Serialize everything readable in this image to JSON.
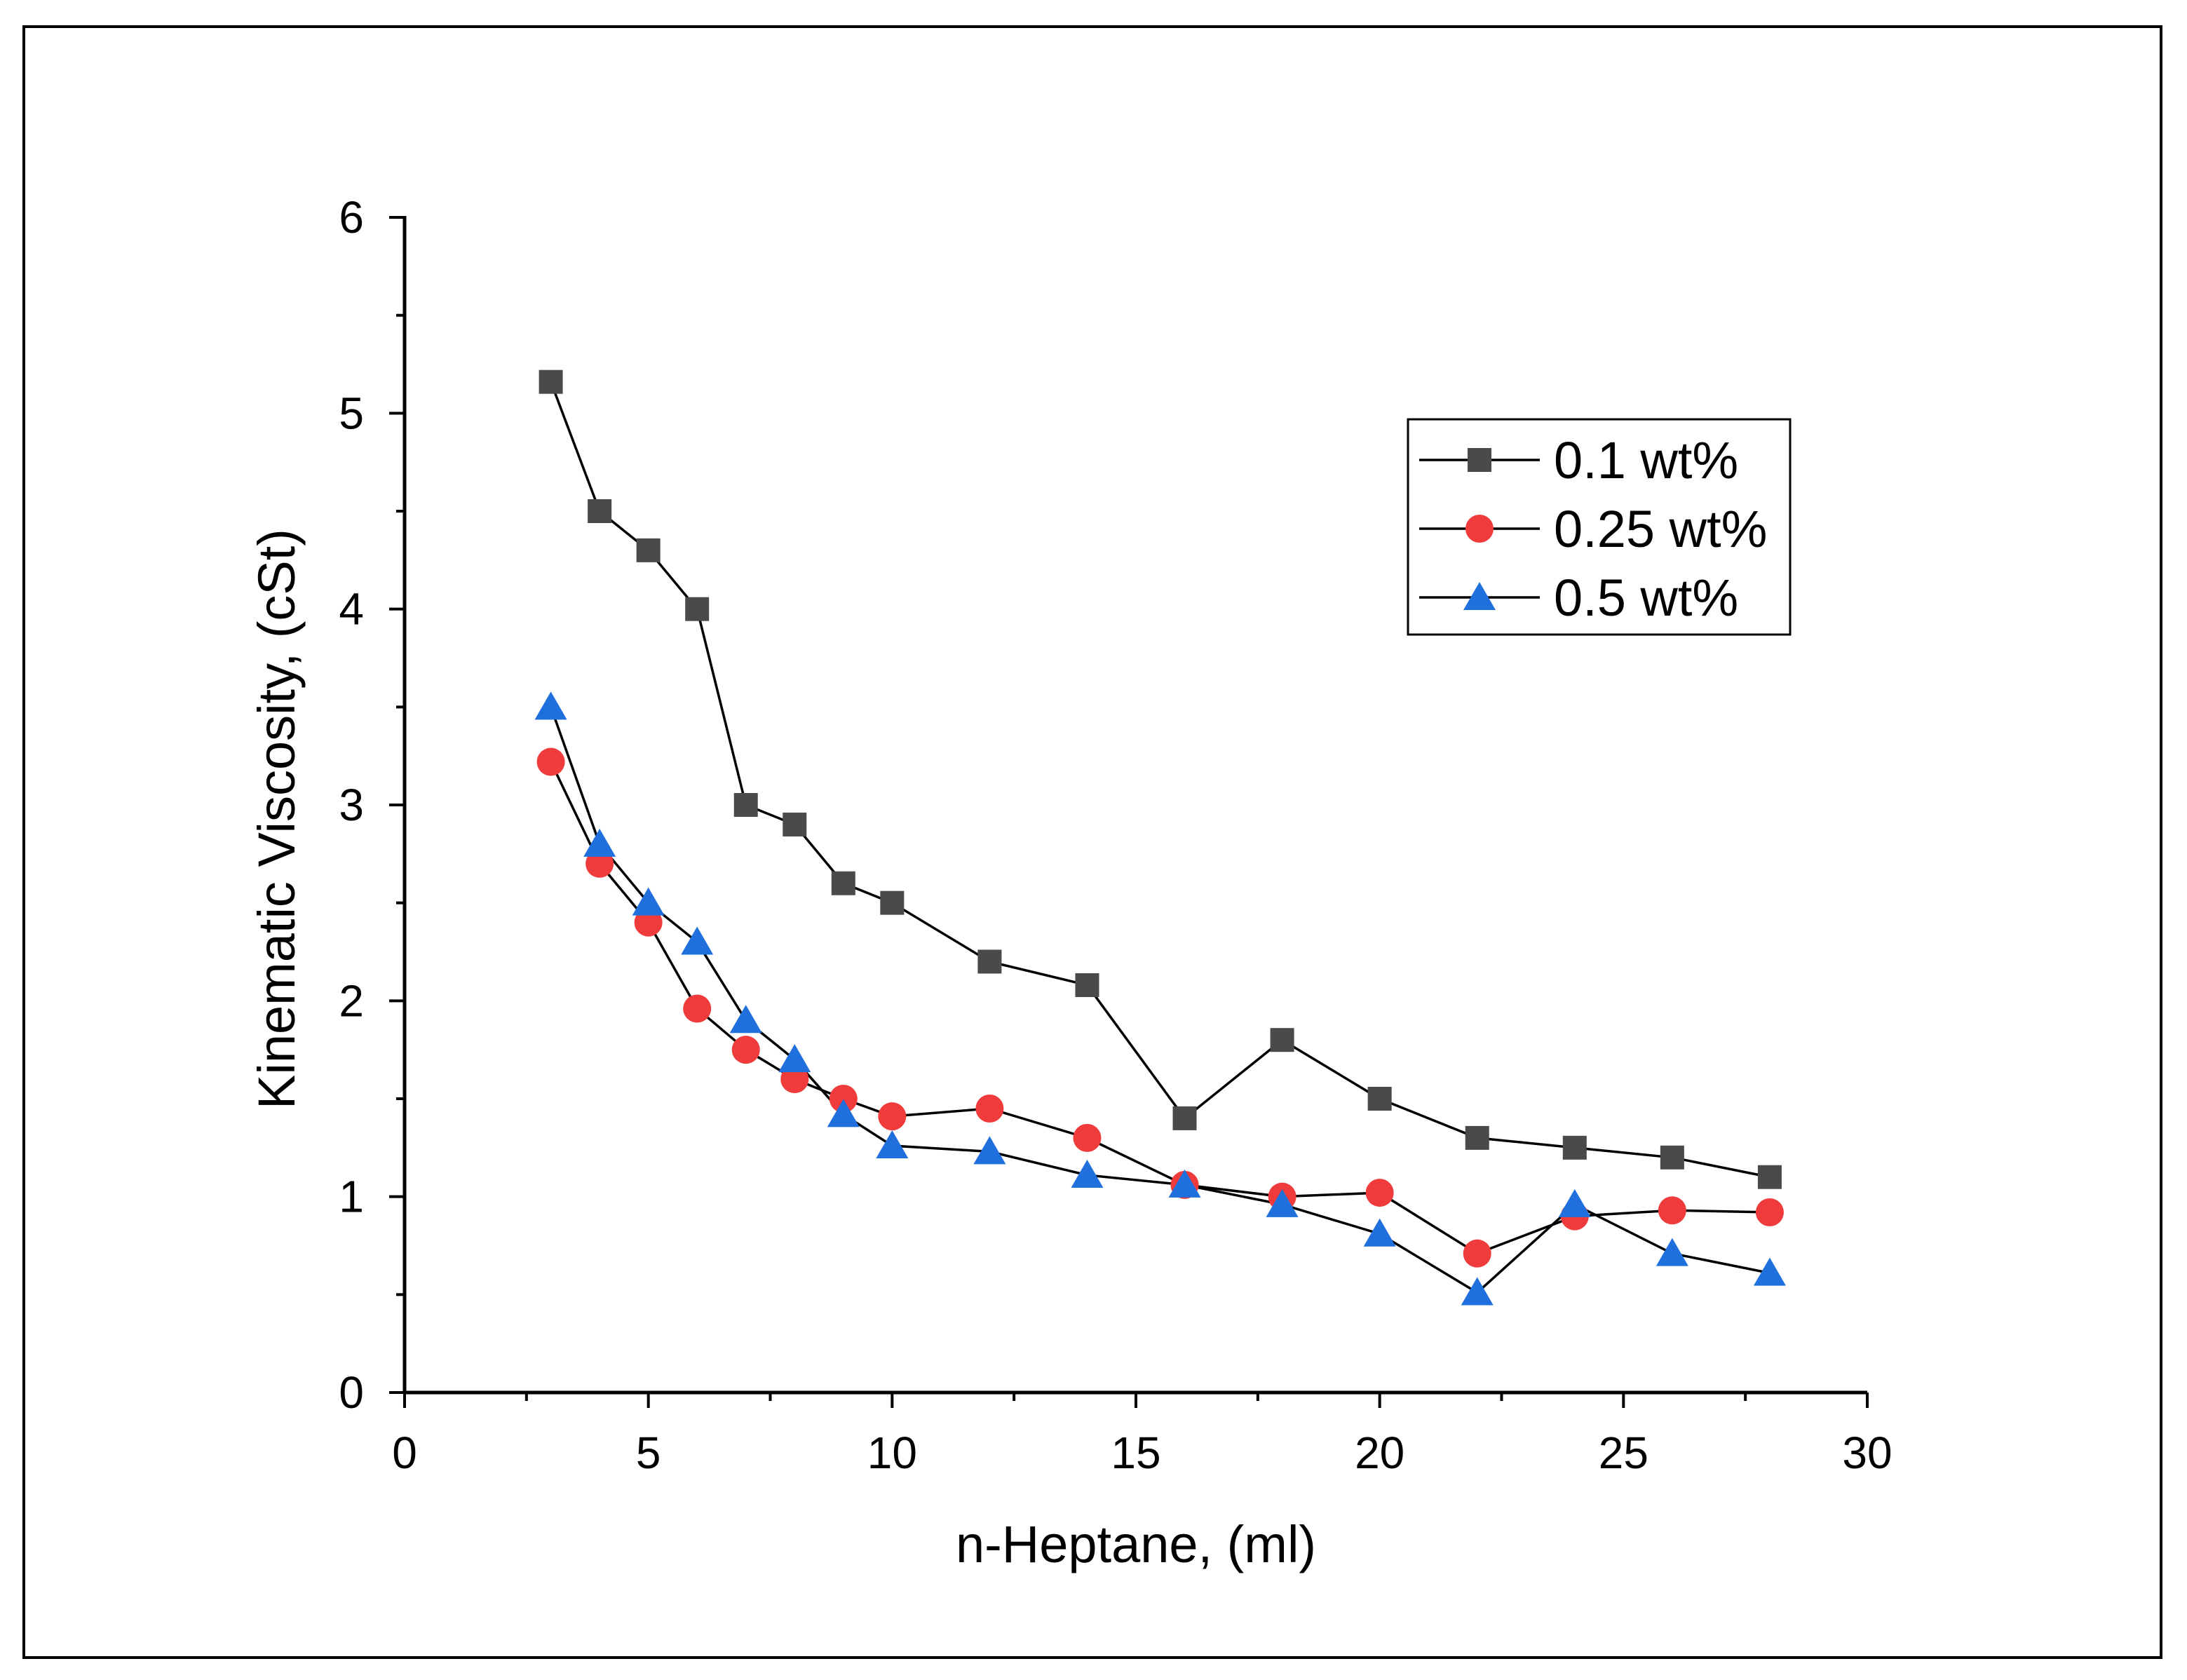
{
  "chart_data": {
    "type": "line",
    "title": "",
    "xlabel": "n-Heptane, (ml)",
    "ylabel": "Kinematic Viscosity, (cSt)",
    "xlim": [
      0,
      30
    ],
    "ylim": [
      0,
      6
    ],
    "x_ticks": [
      "0",
      "5",
      "10",
      "15",
      "20",
      "25",
      "30"
    ],
    "y_ticks": [
      "0",
      "1",
      "2",
      "3",
      "4",
      "5",
      "6"
    ],
    "grid": false,
    "legend_position": "top-right",
    "x": [
      3,
      4,
      5,
      6,
      7,
      8,
      9,
      10,
      12,
      14,
      16,
      18,
      20,
      22,
      24,
      26,
      28
    ],
    "series": [
      {
        "name": "0.1 wt%",
        "marker": "square",
        "color": "#4a4a4a",
        "values": [
          5.16,
          4.5,
          4.3,
          4.0,
          3.0,
          2.9,
          2.6,
          2.5,
          2.2,
          2.08,
          1.4,
          1.8,
          1.5,
          1.3,
          1.25,
          1.2,
          1.1
        ]
      },
      {
        "name": "0.25 wt%",
        "marker": "circle",
        "color": "#ef3b3b",
        "values": [
          3.22,
          2.7,
          2.4,
          1.96,
          1.75,
          1.6,
          1.5,
          1.41,
          1.45,
          1.3,
          1.06,
          1.0,
          1.02,
          0.71,
          0.9,
          0.93,
          0.92
        ]
      },
      {
        "name": "0.5 wt%",
        "marker": "triangle",
        "color": "#1f6fdc",
        "values": [
          3.5,
          2.8,
          2.5,
          2.3,
          1.9,
          1.7,
          1.42,
          1.26,
          1.23,
          1.11,
          1.06,
          0.96,
          0.81,
          0.51,
          0.96,
          0.71,
          0.61
        ]
      }
    ]
  }
}
